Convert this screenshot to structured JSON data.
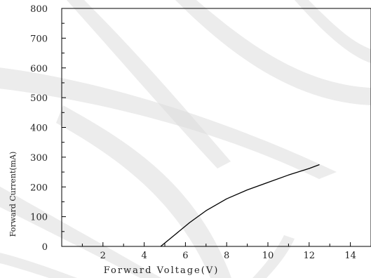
{
  "chart_data": {
    "type": "line",
    "title": "",
    "xlabel": "Forward Voltage(V)",
    "ylabel": "Forward Current(mA)",
    "xlim": [
      0,
      15
    ],
    "ylim": [
      0,
      800
    ],
    "x_ticks": [
      2,
      4,
      6,
      8,
      10,
      12,
      14
    ],
    "x_tick_labels": [
      "2",
      "4",
      "6",
      "8",
      "10",
      "12",
      "14"
    ],
    "y_ticks": [
      0,
      100,
      200,
      300,
      400,
      500,
      600,
      700,
      800
    ],
    "y_tick_labels": [
      "0",
      "100",
      "200",
      "300",
      "400",
      "500",
      "600",
      "700",
      "800"
    ],
    "grid": false,
    "legend": "none",
    "series": [
      {
        "name": "",
        "color": "#000000",
        "x": [
          4.8,
          5.5,
          6.2,
          7.0,
          8.0,
          9.0,
          10.0,
          11.0,
          12.0,
          12.5
        ],
        "y": [
          0,
          40,
          80,
          120,
          160,
          190,
          215,
          240,
          262,
          275
        ]
      }
    ]
  }
}
